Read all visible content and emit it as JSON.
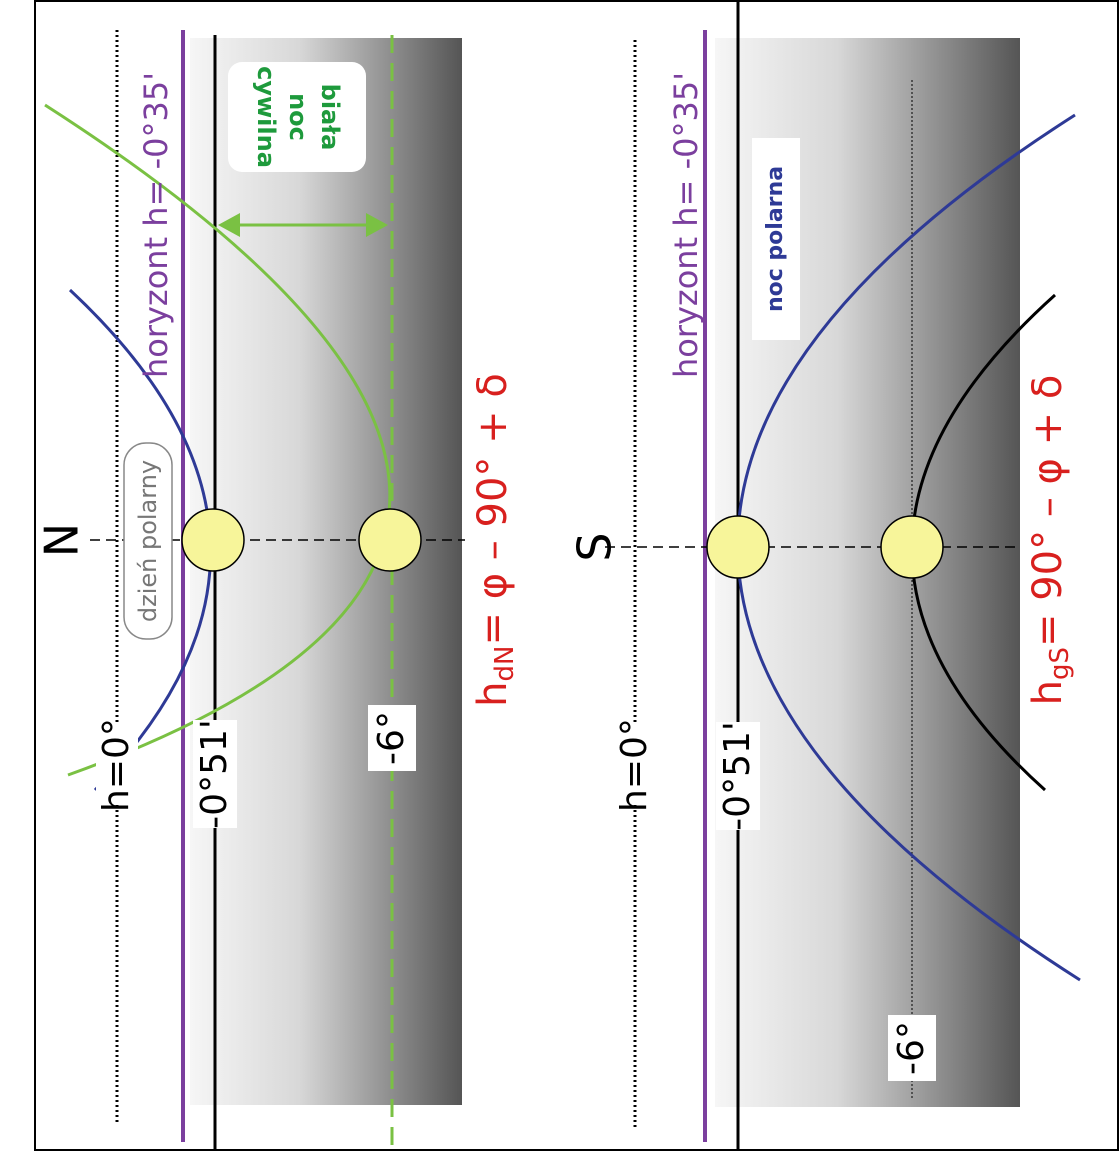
{
  "panels": [
    {
      "pole": "N",
      "label_h0": "h=0°",
      "label_refraction": "-0°51'",
      "label_civil": "-6°",
      "horizon": "horyzont h= -0°35'",
      "badge": "dzień polarny",
      "note": [
        "biała",
        "noc",
        "cywilna"
      ],
      "formula": {
        "h": "h",
        "subscript": "dN",
        "rest": "= φ – 90° + δ"
      }
    },
    {
      "pole": "S",
      "label_h0": "h=0°",
      "label_refraction": "-0°51'",
      "label_civil": "-6°",
      "horizon": "horyzont h= -0°35'",
      "badge": "noc polarna",
      "formula": {
        "h": "h",
        "subscript": "gS",
        "rest": "= 90° – φ + δ"
      }
    }
  ]
}
